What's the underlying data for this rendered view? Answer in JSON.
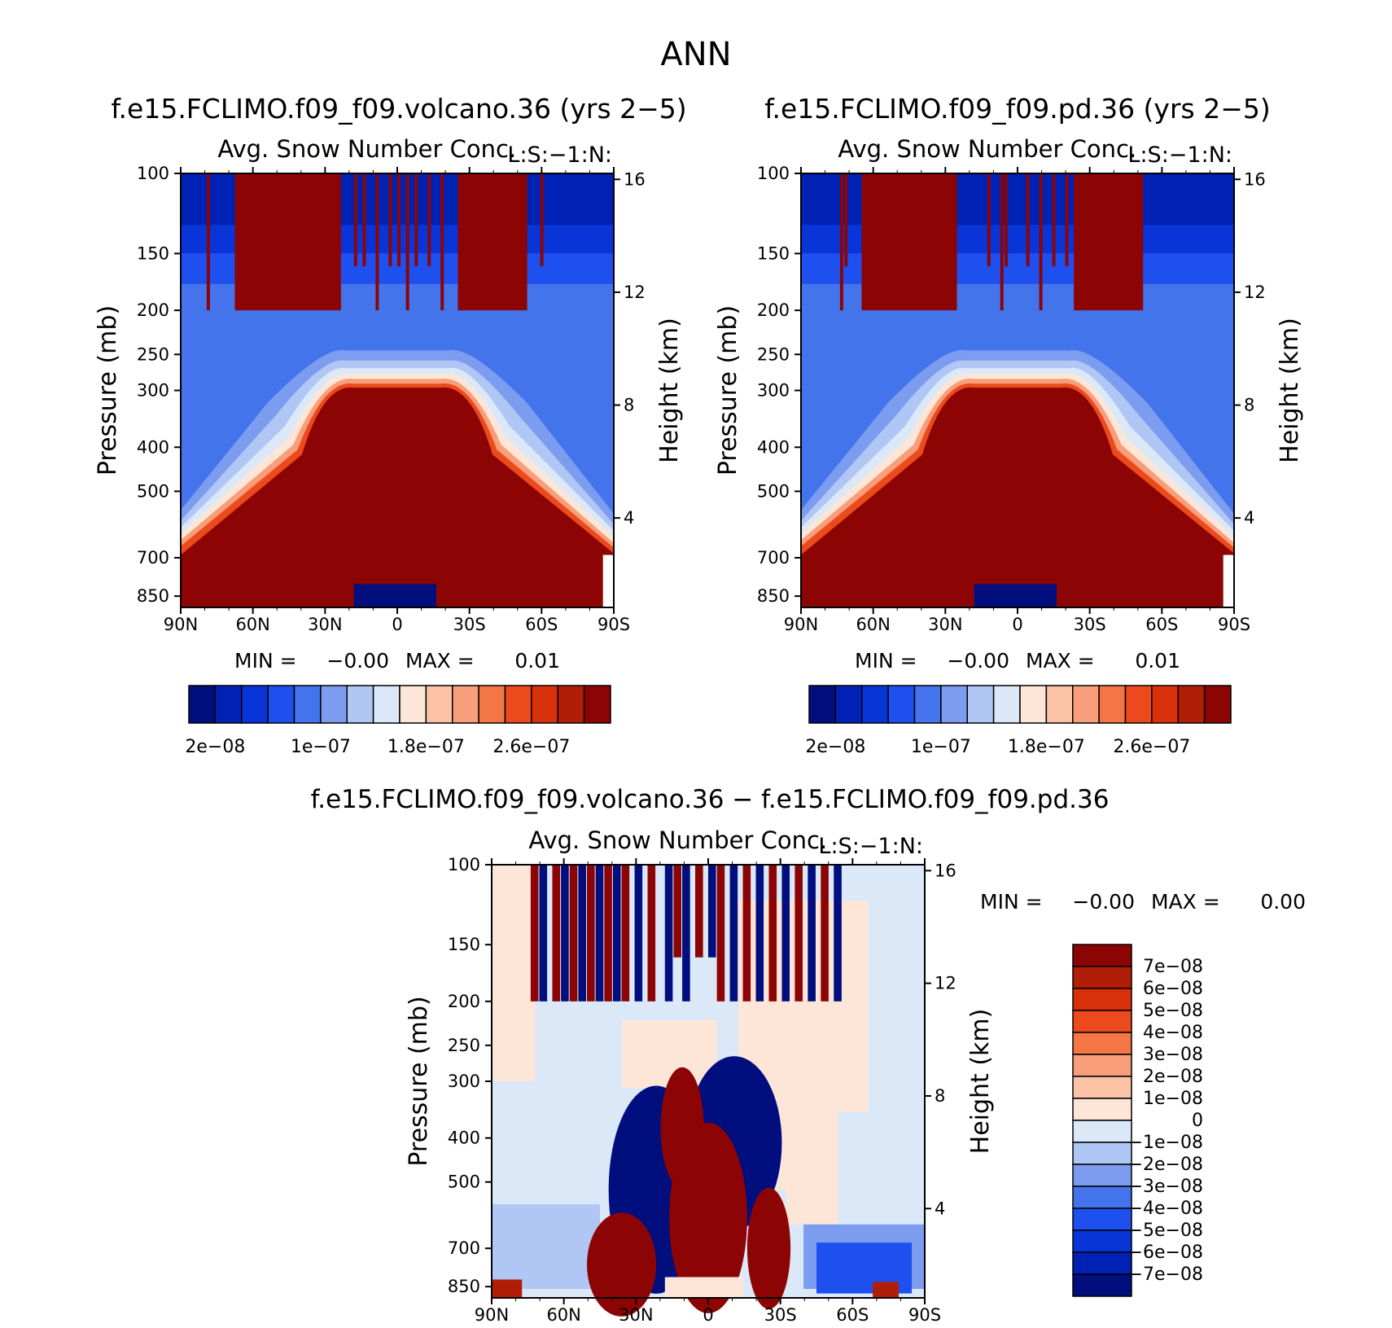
{
  "page_title": "ANN",
  "colors": {
    "sequential": [
      "#000e7e",
      "#0022b4",
      "#0834d8",
      "#1e50f0",
      "#4474ec",
      "#7c9cf0",
      "#b0c6f4",
      "#dae8f8",
      "#fde6d8",
      "#fcc2a6",
      "#f89e7a",
      "#f47646",
      "#ec4a1c",
      "#d8300a",
      "#b01e08",
      "#8c0404"
    ],
    "diverging": [
      "#000e7e",
      "#0022b4",
      "#0834d8",
      "#1e50f0",
      "#4474ec",
      "#7c9cf0",
      "#b0c6f4",
      "#dae8f8",
      "#fde6d8",
      "#fcc2a6",
      "#f89e7a",
      "#f47646",
      "#ec4a1c",
      "#d8300a",
      "#b01e08",
      "#8c0404"
    ]
  },
  "chart_data": [
    {
      "type": "heatmap",
      "id": "volcano",
      "title": "f.e15.FCLIMO.f09_f09.volcano.36 (yrs 2−5)",
      "subtitle": "Avg. Snow Number Conc.",
      "units_label": "L:S:−1:N:",
      "xlabel": "",
      "ylabel": "Pressure (mb)",
      "ylabel_right": "Height (km)",
      "x_ticks": [
        "90N",
        "60N",
        "30N",
        "0",
        "30S",
        "60S",
        "90S"
      ],
      "y_ticks": [
        "100",
        "150",
        "200",
        "250",
        "300",
        "400",
        "500",
        "700",
        "850"
      ],
      "y_right_ticks": [
        "16",
        "12",
        "8",
        "4"
      ],
      "min_label": "MIN =",
      "min_value": "−0.00",
      "max_label": "MAX =",
      "max_value": "0.01",
      "colorbar_labels": [
        "2e−08",
        "1e−07",
        "1.8e−07",
        "2.6e−07"
      ]
    },
    {
      "type": "heatmap",
      "id": "pd",
      "title": "f.e15.FCLIMO.f09_f09.pd.36 (yrs 2−5)",
      "subtitle": "Avg. Snow Number Conc.",
      "units_label": "L:S:−1:N:",
      "xlabel": "",
      "ylabel": "Pressure (mb)",
      "ylabel_right": "Height (km)",
      "x_ticks": [
        "90N",
        "60N",
        "30N",
        "0",
        "30S",
        "60S",
        "90S"
      ],
      "y_ticks": [
        "100",
        "150",
        "200",
        "250",
        "300",
        "400",
        "500",
        "700",
        "850"
      ],
      "y_right_ticks": [
        "16",
        "12",
        "8",
        "4"
      ],
      "min_label": "MIN =",
      "min_value": "−0.00",
      "max_label": "MAX =",
      "max_value": "0.01",
      "colorbar_labels": [
        "2e−08",
        "1e−07",
        "1.8e−07",
        "2.6e−07"
      ]
    },
    {
      "type": "heatmap",
      "id": "diff",
      "title": "f.e15.FCLIMO.f09_f09.volcano.36 − f.e15.FCLIMO.f09_f09.pd.36",
      "subtitle": "Avg. Snow Number Conc.",
      "units_label": "L:S:−1:N:",
      "xlabel": "",
      "ylabel": "Pressure (mb)",
      "ylabel_right": "Height (km)",
      "x_ticks": [
        "90N",
        "60N",
        "30N",
        "0",
        "30S",
        "60S",
        "90S"
      ],
      "y_ticks": [
        "100",
        "150",
        "200",
        "250",
        "300",
        "400",
        "500",
        "700",
        "850"
      ],
      "y_right_ticks": [
        "16",
        "12",
        "8",
        "4"
      ],
      "min_label": "MIN =",
      "min_value": "−0.00",
      "max_label": "MAX =",
      "max_value": "0.00",
      "colorbar_labels": [
        "7e−08",
        "6e−08",
        "5e−08",
        "4e−08",
        "3e−08",
        "2e−08",
        "1e−08",
        "0",
        "−1e−08",
        "−2e−08",
        "−3e−08",
        "−4e−08",
        "−5e−08",
        "−6e−08",
        "−7e−08"
      ]
    }
  ]
}
